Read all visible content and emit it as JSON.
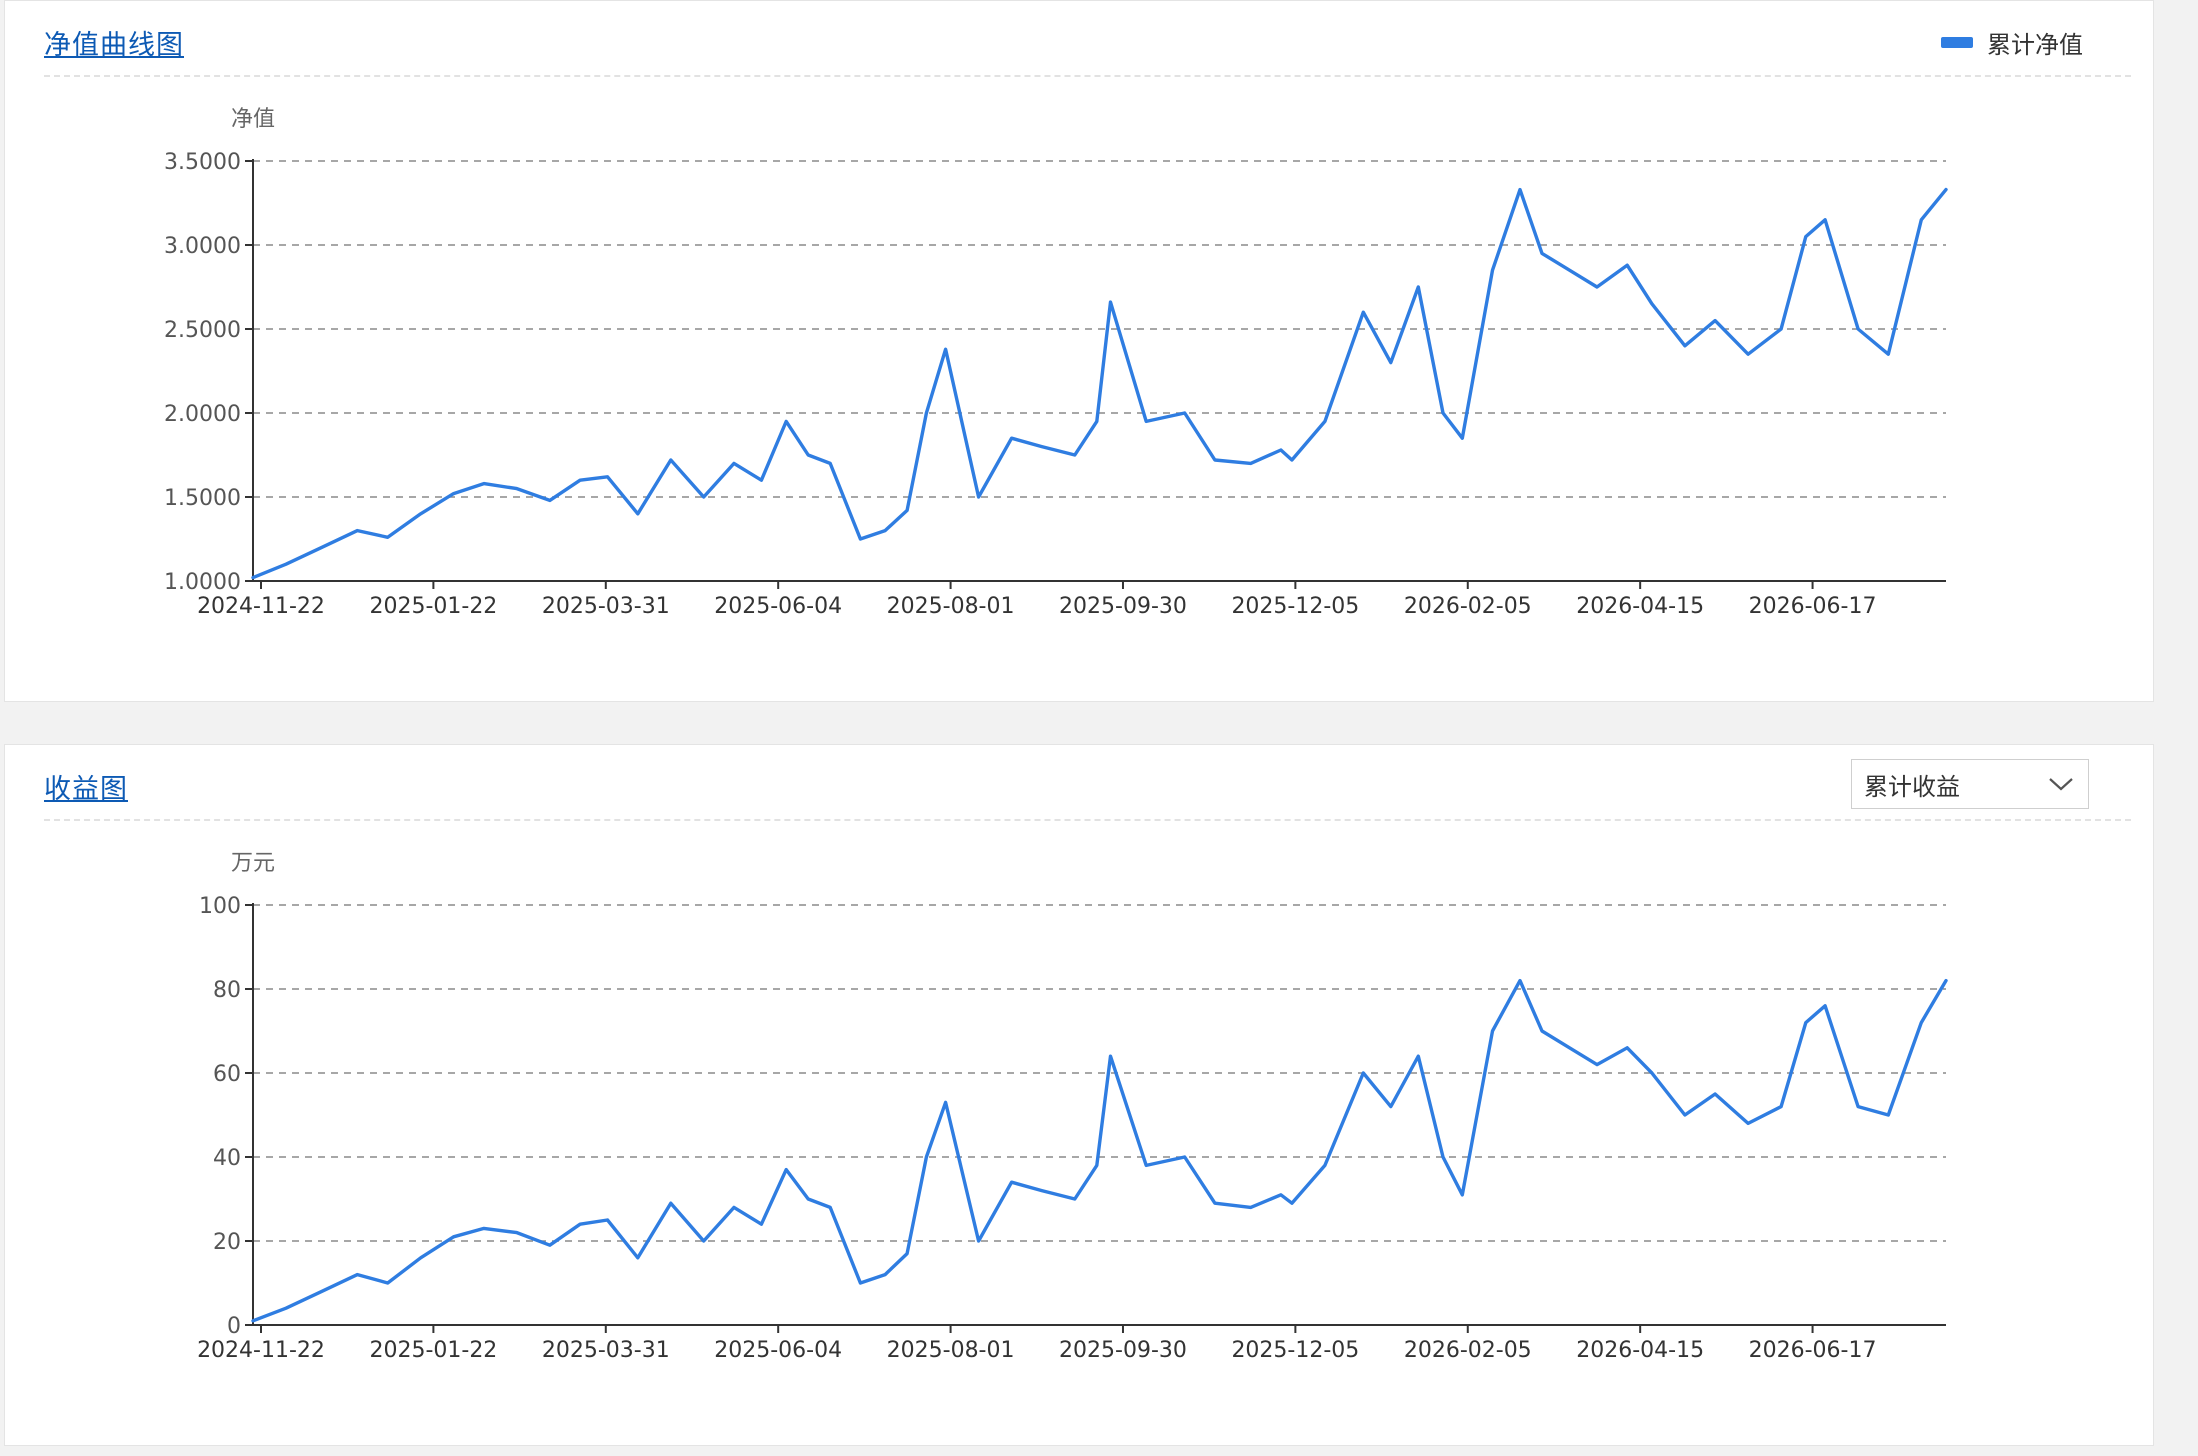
{
  "colors": {
    "line": "#2f7de1",
    "title": "#0d5ab4"
  },
  "panel1": {
    "title": "净值曲线图",
    "legend_label": "累计净值",
    "chart_data": {
      "type": "line",
      "ylabel": "净值",
      "ylim": [
        1.0,
        3.5
      ],
      "yticks": [
        "1.0000",
        "1.5000",
        "2.0000",
        "2.5000",
        "3.0000",
        "3.5000"
      ],
      "x_tick_labels": [
        "2024-11-22",
        "2025-01-22",
        "2025-03-31",
        "2025-06-04",
        "2025-08-01",
        "2025-09-30",
        "2025-12-05",
        "2026-02-05",
        "2026-04-15",
        "2026-06-17"
      ],
      "grid": true,
      "legend": "top-right",
      "series": [
        {
          "name": "累计净值",
          "x": [
            "2024-11-22",
            "2024-12-04",
            "2024-12-17",
            "2024-12-30",
            "2025-01-10",
            "2025-01-22",
            "2025-02-03",
            "2025-02-14",
            "2025-02-26",
            "2025-03-10",
            "2025-03-21",
            "2025-03-31",
            "2025-04-11",
            "2025-04-23",
            "2025-05-05",
            "2025-05-16",
            "2025-05-26",
            "2025-06-04",
            "2025-06-12",
            "2025-06-20",
            "2025-07-01",
            "2025-07-10",
            "2025-07-18",
            "2025-07-25",
            "2025-08-01",
            "2025-08-13",
            "2025-08-25",
            "2025-09-05",
            "2025-09-17",
            "2025-09-25",
            "2025-09-30",
            "2025-10-13",
            "2025-10-27",
            "2025-11-07",
            "2025-11-20",
            "2025-12-01",
            "2025-12-05",
            "2025-12-17",
            "2025-12-31",
            "2026-01-10",
            "2026-01-20",
            "2026-01-29",
            "2026-02-05",
            "2026-02-16",
            "2026-02-26",
            "2026-03-06",
            "2026-03-16",
            "2026-03-26",
            "2026-04-06",
            "2026-04-15",
            "2026-04-27",
            "2026-05-08",
            "2026-05-20",
            "2026-06-01",
            "2026-06-10",
            "2026-06-17",
            "2026-06-29",
            "2026-07-10",
            "2026-07-22",
            "2026-07-31"
          ],
          "values": [
            1.02,
            1.1,
            1.2,
            1.3,
            1.26,
            1.4,
            1.52,
            1.58,
            1.55,
            1.48,
            1.6,
            1.62,
            1.4,
            1.72,
            1.5,
            1.7,
            1.6,
            1.95,
            1.75,
            1.7,
            1.25,
            1.3,
            1.42,
            2.0,
            2.38,
            1.5,
            1.85,
            1.8,
            1.75,
            1.95,
            2.66,
            1.95,
            2.0,
            1.72,
            1.7,
            1.78,
            1.72,
            1.95,
            2.6,
            2.3,
            2.75,
            2.0,
            1.85,
            2.85,
            3.33,
            2.95,
            2.85,
            2.75,
            2.88,
            2.65,
            2.4,
            2.55,
            2.35,
            2.5,
            3.05,
            3.15,
            2.5,
            2.35,
            3.15,
            3.33
          ]
        }
      ]
    }
  },
  "panel2": {
    "title": "收益图",
    "dropdown_value": "累计收益",
    "chart_data": {
      "type": "line",
      "ylabel": "万元",
      "ylim": [
        0,
        100
      ],
      "yticks": [
        "0",
        "20",
        "40",
        "60",
        "80",
        "100"
      ],
      "x_tick_labels": [
        "2024-11-22",
        "2025-01-22",
        "2025-03-31",
        "2025-06-04",
        "2025-08-01",
        "2025-09-30",
        "2025-12-05",
        "2026-02-05",
        "2026-04-15",
        "2026-06-17"
      ],
      "grid": true,
      "series": [
        {
          "x": [
            "2024-11-22",
            "2024-12-04",
            "2024-12-17",
            "2024-12-30",
            "2025-01-10",
            "2025-01-22",
            "2025-02-03",
            "2025-02-14",
            "2025-02-26",
            "2025-03-10",
            "2025-03-21",
            "2025-03-31",
            "2025-04-11",
            "2025-04-23",
            "2025-05-05",
            "2025-05-16",
            "2025-05-26",
            "2025-06-04",
            "2025-06-12",
            "2025-06-20",
            "2025-07-01",
            "2025-07-10",
            "2025-07-18",
            "2025-07-25",
            "2025-08-01",
            "2025-08-13",
            "2025-08-25",
            "2025-09-05",
            "2025-09-17",
            "2025-09-25",
            "2025-09-30",
            "2025-10-13",
            "2025-10-27",
            "2025-11-07",
            "2025-11-20",
            "2025-12-01",
            "2025-12-05",
            "2025-12-17",
            "2025-12-31",
            "2026-01-10",
            "2026-01-20",
            "2026-01-29",
            "2026-02-05",
            "2026-02-16",
            "2026-02-26",
            "2026-03-06",
            "2026-03-16",
            "2026-03-26",
            "2026-04-06",
            "2026-04-15",
            "2026-04-27",
            "2026-05-08",
            "2026-05-20",
            "2026-06-01",
            "2026-06-10",
            "2026-06-17",
            "2026-06-29",
            "2026-07-10",
            "2026-07-22",
            "2026-07-31"
          ],
          "values": [
            1,
            4,
            8,
            12,
            10,
            16,
            21,
            23,
            22,
            19,
            24,
            25,
            16,
            29,
            20,
            28,
            24,
            37,
            30,
            28,
            10,
            12,
            17,
            40,
            53,
            20,
            34,
            32,
            30,
            38,
            64,
            38,
            40,
            29,
            28,
            31,
            29,
            38,
            60,
            52,
            64,
            40,
            31,
            70,
            82,
            70,
            66,
            62,
            66,
            60,
            50,
            55,
            48,
            52,
            72,
            76,
            52,
            50,
            72,
            82
          ]
        }
      ]
    }
  }
}
